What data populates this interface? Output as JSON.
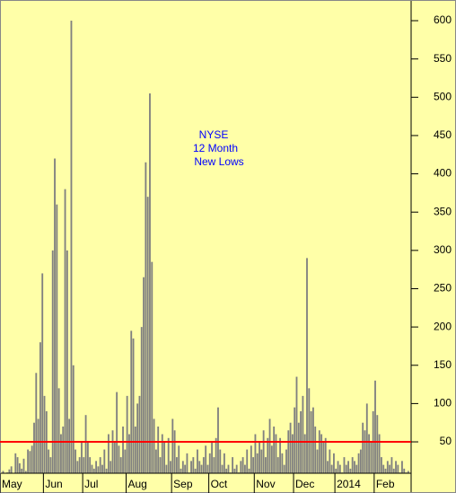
{
  "chart_data": {
    "type": "bar",
    "annotation": [
      "NYSE",
      "12 Month",
      "New Lows"
    ],
    "categories": [
      "May",
      null,
      null,
      null,
      null,
      null,
      null,
      null,
      null,
      null,
      null,
      null,
      null,
      null,
      null,
      null,
      null,
      null,
      null,
      null,
      null,
      "Jun",
      null,
      null,
      null,
      null,
      null,
      null,
      null,
      null,
      null,
      null,
      null,
      null,
      null,
      null,
      null,
      null,
      null,
      null,
      "Jul",
      null,
      null,
      null,
      null,
      null,
      null,
      null,
      null,
      null,
      null,
      null,
      null,
      null,
      null,
      null,
      null,
      null,
      null,
      null,
      null,
      "Aug",
      null,
      null,
      null,
      null,
      null,
      null,
      null,
      null,
      null,
      null,
      null,
      null,
      null,
      null,
      null,
      null,
      null,
      null,
      null,
      null,
      null,
      "Sep",
      null,
      null,
      null,
      null,
      null,
      null,
      null,
      null,
      null,
      null,
      null,
      null,
      null,
      null,
      null,
      null,
      null,
      "Oct",
      null,
      null,
      null,
      null,
      null,
      null,
      null,
      null,
      null,
      null,
      null,
      null,
      null,
      null,
      null,
      null,
      null,
      null,
      null,
      null,
      null,
      "Nov",
      null,
      null,
      null,
      null,
      null,
      null,
      null,
      null,
      null,
      null,
      null,
      null,
      null,
      null,
      null,
      null,
      null,
      null,
      "Dec",
      null,
      null,
      null,
      null,
      null,
      null,
      null,
      null,
      null,
      null,
      null,
      null,
      null,
      null,
      null,
      null,
      null,
      null,
      null,
      "2014",
      null,
      null,
      null,
      null,
      null,
      null,
      null,
      null,
      null,
      null,
      null,
      null,
      null,
      null,
      null,
      null,
      null,
      null,
      "Feb",
      null,
      null,
      null,
      null,
      null,
      null,
      null,
      null,
      null,
      null,
      null,
      null,
      null,
      null,
      null,
      null
    ],
    "values": [
      8,
      12,
      5,
      10,
      14,
      18,
      6,
      35,
      30,
      22,
      15,
      28,
      12,
      40,
      38,
      45,
      75,
      140,
      80,
      180,
      270,
      110,
      90,
      40,
      30,
      300,
      420,
      360,
      120,
      60,
      70,
      380,
      300,
      80,
      600,
      150,
      40,
      25,
      30,
      50,
      30,
      85,
      50,
      30,
      20,
      15,
      25,
      18,
      30,
      20,
      40,
      15,
      60,
      25,
      65,
      50,
      115,
      45,
      30,
      70,
      40,
      110,
      60,
      195,
      185,
      70,
      100,
      110,
      200,
      265,
      415,
      370,
      505,
      285,
      80,
      40,
      70,
      30,
      60,
      50,
      20,
      55,
      25,
      80,
      65,
      30,
      45,
      15,
      25,
      20,
      35,
      10,
      25,
      30,
      15,
      40,
      25,
      20,
      30,
      45,
      20,
      35,
      50,
      30,
      55,
      95,
      40,
      20,
      35,
      15,
      20,
      10,
      30,
      15,
      20,
      10,
      25,
      30,
      20,
      40,
      15,
      45,
      30,
      60,
      35,
      50,
      40,
      65,
      30,
      55,
      80,
      45,
      70,
      60,
      30,
      55,
      35,
      20,
      40,
      65,
      75,
      60,
      95,
      135,
      75,
      90,
      110,
      60,
      290,
      120,
      90,
      95,
      70,
      40,
      65,
      60,
      50,
      55,
      25,
      40,
      20,
      35,
      15,
      25,
      20,
      10,
      30,
      20,
      25,
      15,
      30,
      25,
      20,
      35,
      40,
      75,
      65,
      100,
      60,
      50,
      90,
      130,
      85,
      60,
      30,
      20,
      15,
      25,
      20,
      30,
      15,
      25,
      20,
      10,
      25,
      15,
      10,
      12
    ],
    "color": "#808080",
    "ylim": [
      9,
      627
    ],
    "yticks": [
      50,
      100,
      150,
      200,
      250,
      300,
      350,
      400,
      450,
      500,
      550,
      600
    ],
    "reference_line": {
      "value": 50,
      "color": "#ff0000"
    },
    "background": "#ffffa8"
  }
}
